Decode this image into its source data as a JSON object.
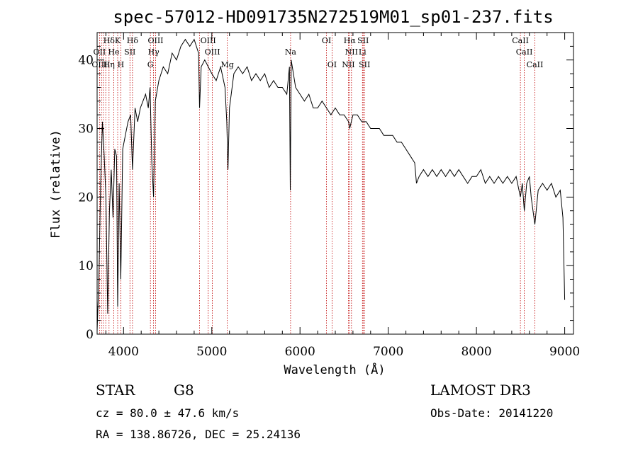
{
  "chart_data": {
    "type": "line",
    "title": "spec-57012-HD091735N272519M01_sp01-237.fits",
    "xlabel": "Wavelength (Å)",
    "ylabel": "Flux (relative)",
    "xlim": [
      3700,
      9100
    ],
    "ylim": [
      0,
      44
    ],
    "x_ticks": [
      4000,
      5000,
      6000,
      7000,
      8000,
      9000
    ],
    "y_ticks": [
      0,
      10,
      20,
      30,
      40
    ],
    "grid": false,
    "series": [
      {
        "points": [
          [
            3700,
            0.5
          ],
          [
            3720,
            8
          ],
          [
            3740,
            22
          ],
          [
            3760,
            31
          ],
          [
            3780,
            26
          ],
          [
            3800,
            20
          ],
          [
            3820,
            3
          ],
          [
            3840,
            18
          ],
          [
            3860,
            24
          ],
          [
            3880,
            17
          ],
          [
            3900,
            27
          ],
          [
            3920,
            26
          ],
          [
            3933,
            4
          ],
          [
            3950,
            22
          ],
          [
            3968,
            8
          ],
          [
            3990,
            27
          ],
          [
            4020,
            29
          ],
          [
            4050,
            31
          ],
          [
            4080,
            32
          ],
          [
            4101,
            24
          ],
          [
            4130,
            33
          ],
          [
            4160,
            31
          ],
          [
            4190,
            33
          ],
          [
            4220,
            34
          ],
          [
            4250,
            35
          ],
          [
            4280,
            33
          ],
          [
            4300,
            36
          ],
          [
            4320,
            25
          ],
          [
            4340,
            20
          ],
          [
            4360,
            34
          ],
          [
            4400,
            37
          ],
          [
            4450,
            39
          ],
          [
            4500,
            38
          ],
          [
            4550,
            41
          ],
          [
            4600,
            40
          ],
          [
            4650,
            42
          ],
          [
            4700,
            43
          ],
          [
            4750,
            42
          ],
          [
            4800,
            43
          ],
          [
            4850,
            41
          ],
          [
            4861,
            33
          ],
          [
            4880,
            39
          ],
          [
            4920,
            40
          ],
          [
            4960,
            39
          ],
          [
            5000,
            38
          ],
          [
            5050,
            37
          ],
          [
            5100,
            39
          ],
          [
            5150,
            36
          ],
          [
            5170,
            31
          ],
          [
            5183,
            24
          ],
          [
            5200,
            33
          ],
          [
            5250,
            38
          ],
          [
            5300,
            39
          ],
          [
            5350,
            38
          ],
          [
            5400,
            39
          ],
          [
            5450,
            37
          ],
          [
            5500,
            38
          ],
          [
            5550,
            37
          ],
          [
            5600,
            38
          ],
          [
            5650,
            36
          ],
          [
            5700,
            37
          ],
          [
            5750,
            36
          ],
          [
            5800,
            36
          ],
          [
            5850,
            35
          ],
          [
            5880,
            39
          ],
          [
            5890,
            21
          ],
          [
            5900,
            40
          ],
          [
            5950,
            36
          ],
          [
            6000,
            35
          ],
          [
            6050,
            34
          ],
          [
            6100,
            35
          ],
          [
            6150,
            33
          ],
          [
            6200,
            33
          ],
          [
            6250,
            34
          ],
          [
            6300,
            33
          ],
          [
            6350,
            32
          ],
          [
            6400,
            33
          ],
          [
            6450,
            32
          ],
          [
            6500,
            32
          ],
          [
            6550,
            31
          ],
          [
            6563,
            30
          ],
          [
            6600,
            32
          ],
          [
            6650,
            32
          ],
          [
            6700,
            31
          ],
          [
            6750,
            31
          ],
          [
            6800,
            30
          ],
          [
            6850,
            30
          ],
          [
            6900,
            30
          ],
          [
            6950,
            29
          ],
          [
            7000,
            29
          ],
          [
            7050,
            29
          ],
          [
            7100,
            28
          ],
          [
            7150,
            28
          ],
          [
            7200,
            27
          ],
          [
            7250,
            26
          ],
          [
            7300,
            25
          ],
          [
            7320,
            22
          ],
          [
            7350,
            23
          ],
          [
            7400,
            24
          ],
          [
            7450,
            23
          ],
          [
            7500,
            24
          ],
          [
            7550,
            23
          ],
          [
            7600,
            24
          ],
          [
            7650,
            23
          ],
          [
            7700,
            24
          ],
          [
            7750,
            23
          ],
          [
            7800,
            24
          ],
          [
            7850,
            23
          ],
          [
            7900,
            22
          ],
          [
            7950,
            23
          ],
          [
            8000,
            23
          ],
          [
            8050,
            24
          ],
          [
            8100,
            22
          ],
          [
            8150,
            23
          ],
          [
            8200,
            22
          ],
          [
            8250,
            23
          ],
          [
            8300,
            22
          ],
          [
            8350,
            23
          ],
          [
            8400,
            22
          ],
          [
            8450,
            23
          ],
          [
            8498,
            20
          ],
          [
            8520,
            22
          ],
          [
            8542,
            18
          ],
          [
            8570,
            22
          ],
          [
            8600,
            23
          ],
          [
            8620,
            20
          ],
          [
            8662,
            16
          ],
          [
            8700,
            21
          ],
          [
            8750,
            22
          ],
          [
            8800,
            21
          ],
          [
            8850,
            22
          ],
          [
            8900,
            20
          ],
          [
            8950,
            21
          ],
          [
            8980,
            17
          ],
          [
            9000,
            5
          ]
        ]
      }
    ],
    "line_labels": [
      {
        "label": "Hδ",
        "x": 3835,
        "row": 1
      },
      {
        "label": "K",
        "x": 3933,
        "row": 1
      },
      {
        "label": "Hδ",
        "x": 4101,
        "row": 1
      },
      {
        "label": "OIII",
        "x": 4363,
        "row": 1
      },
      {
        "label": "OIII",
        "x": 4959,
        "row": 1
      },
      {
        "label": "OI",
        "x": 6300,
        "row": 1
      },
      {
        "label": "Hα",
        "x": 6563,
        "row": 1
      },
      {
        "label": "SII",
        "x": 6716,
        "row": 1
      },
      {
        "label": "CaII",
        "x": 8498,
        "row": 1
      },
      {
        "label": "OII",
        "x": 3727,
        "row": 2
      },
      {
        "label": "He",
        "x": 3889,
        "row": 2
      },
      {
        "label": "SII",
        "x": 4072,
        "row": 2
      },
      {
        "label": "Hγ",
        "x": 4340,
        "row": 2
      },
      {
        "label": "OIII",
        "x": 5007,
        "row": 2
      },
      {
        "label": "Na",
        "x": 5893,
        "row": 2
      },
      {
        "label": "NII",
        "x": 6583,
        "row": 2
      },
      {
        "label": "Li",
        "x": 6708,
        "row": 2
      },
      {
        "label": "CaII",
        "x": 8542,
        "row": 2
      },
      {
        "label": "OIII",
        "x": 3727,
        "row": 3
      },
      {
        "label": "Hη",
        "x": 3835,
        "row": 3
      },
      {
        "label": "H",
        "x": 3968,
        "row": 3
      },
      {
        "label": "G",
        "x": 4304,
        "row": 3
      },
      {
        "label": "Mg",
        "x": 5175,
        "row": 3
      },
      {
        "label": "OI",
        "x": 6363,
        "row": 3
      },
      {
        "label": "NII",
        "x": 6548,
        "row": 3
      },
      {
        "label": "SII",
        "x": 6731,
        "row": 3
      },
      {
        "label": "CaII",
        "x": 8662,
        "row": 3
      }
    ],
    "line_markers": [
      3727,
      3750,
      3771,
      3798,
      3835,
      3889,
      3933,
      3968,
      4072,
      4101,
      4304,
      4340,
      4363,
      4861,
      4959,
      5007,
      5175,
      5893,
      6300,
      6363,
      6548,
      6563,
      6583,
      6708,
      6716,
      6731,
      8498,
      8542,
      8662
    ]
  },
  "info": {
    "class": "STAR",
    "subclass": "G8",
    "cz": "cz = 80.0 ± 47.6 km/s",
    "radec": "RA = 138.86726, DEC =  25.24136",
    "survey": "LAMOST DR3",
    "obs_date": "Obs-Date: 20141220"
  }
}
